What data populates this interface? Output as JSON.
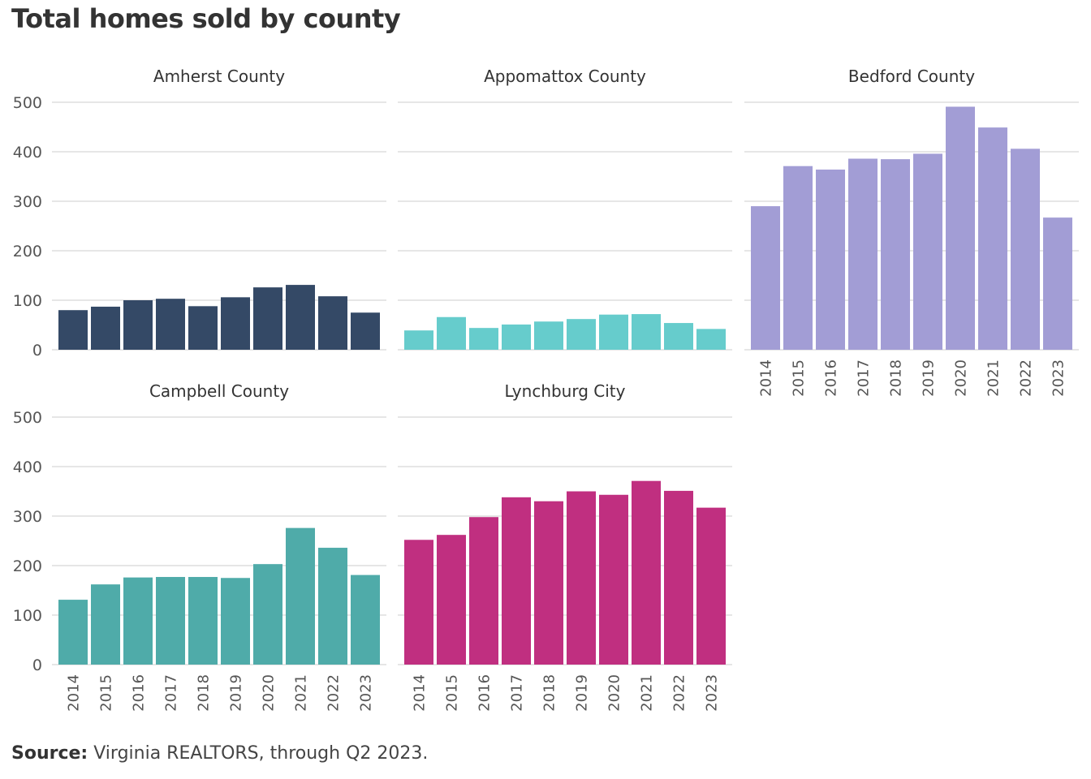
{
  "title": "Total homes sold by county",
  "footer": {
    "source_label": "Source:",
    "source_text": "Virginia REALTORS, through Q2 2023."
  },
  "chart_data": {
    "type": "bar",
    "layout": "small-multiples",
    "categories": [
      "2014",
      "2015",
      "2016",
      "2017",
      "2018",
      "2019",
      "2020",
      "2021",
      "2022",
      "2023"
    ],
    "ylim": [
      0,
      500
    ],
    "yticks": [
      0,
      100,
      200,
      300,
      400,
      500
    ],
    "grid": true,
    "series": [
      {
        "name": "Amherst County",
        "color": "#344966",
        "values": [
          80,
          87,
          100,
          103,
          88,
          106,
          126,
          131,
          108,
          75
        ]
      },
      {
        "name": "Appomattox County",
        "color": "#66CCCC",
        "values": [
          39,
          66,
          44,
          51,
          57,
          62,
          71,
          72,
          54,
          42
        ]
      },
      {
        "name": "Bedford County",
        "color": "#A29DD5",
        "values": [
          290,
          371,
          364,
          386,
          385,
          396,
          491,
          449,
          406,
          267
        ]
      },
      {
        "name": "Campbell County",
        "color": "#4FABA9",
        "values": [
          131,
          162,
          176,
          177,
          177,
          175,
          203,
          276,
          236,
          181
        ]
      },
      {
        "name": "Lynchburg City",
        "color": "#C02F80",
        "values": [
          252,
          262,
          298,
          338,
          330,
          350,
          343,
          371,
          351,
          317
        ]
      }
    ]
  }
}
